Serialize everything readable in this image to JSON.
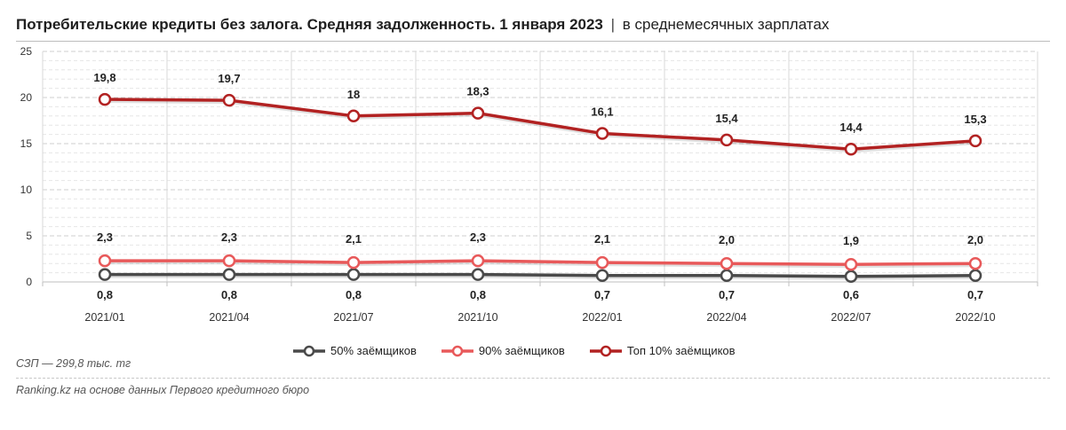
{
  "header": {
    "title": "Потребительские кредиты без залога. Средняя задолженность. 1 января 2023",
    "separator": "|",
    "subtitle": "в среднемесячных зарплатах"
  },
  "footer": {
    "note": "СЗП — 299,8 тыс. тг",
    "source": "Ranking.kz на основе данных Первого кредитного бюро"
  },
  "chart_data": {
    "type": "line",
    "categories": [
      "2021/01",
      "2021/04",
      "2021/07",
      "2021/10",
      "2022/01",
      "2022/04",
      "2022/07",
      "2022/10"
    ],
    "series": [
      {
        "name": "50% заёмщиков",
        "color": "#4a4a4a",
        "values": [
          0.8,
          0.8,
          0.8,
          0.8,
          0.7,
          0.7,
          0.6,
          0.7
        ],
        "labels": [
          "0,8",
          "0,8",
          "0,8",
          "0,8",
          "0,7",
          "0,7",
          "0,6",
          "0,7"
        ],
        "label_position": "below"
      },
      {
        "name": "90% заёмщиков",
        "color": "#e8595a",
        "values": [
          2.3,
          2.3,
          2.1,
          2.3,
          2.1,
          2.0,
          1.9,
          2.0
        ],
        "labels": [
          "2,3",
          "2,3",
          "2,1",
          "2,3",
          "2,1",
          "2,0",
          "1,9",
          "2,0"
        ],
        "label_position": "above"
      },
      {
        "name": "Топ 10% заёмщиков",
        "color": "#b22222",
        "values": [
          19.8,
          19.7,
          18.0,
          18.3,
          16.1,
          15.4,
          14.4,
          15.3
        ],
        "labels": [
          "19,8",
          "19,7",
          "18",
          "18,3",
          "16,1",
          "15,4",
          "14,4",
          "15,3"
        ],
        "label_position": "above"
      }
    ],
    "ylim": [
      0,
      25
    ],
    "yticks": [
      0,
      5,
      10,
      15,
      20,
      25
    ],
    "grid": true,
    "legend_position": "bottom"
  }
}
